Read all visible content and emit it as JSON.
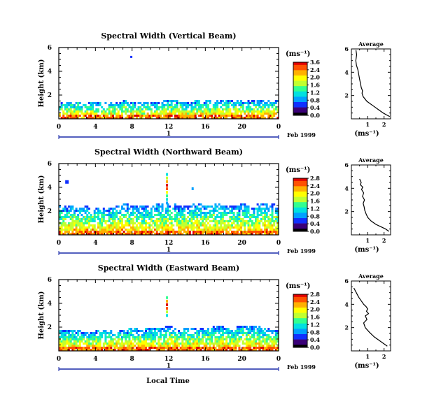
{
  "figure": {
    "date_label": "Feb 1999",
    "day_marker": "1",
    "x_axis_label": "Local Time",
    "colorbar_unit": "(ms⁻¹)",
    "profile_title": "Average",
    "profile_xlabel": "(ms⁻¹)"
  },
  "colors": {
    "colormap": [
      "#000000",
      "#3a0078",
      "#1030ff",
      "#00a0ff",
      "#00e0e0",
      "#30ff90",
      "#c0ff30",
      "#ffff00",
      "#ffb000",
      "#ff5000",
      "#e00000"
    ]
  },
  "chart_data": [
    {
      "type": "heatmap",
      "title": "Spectral Width (Vertical Beam)",
      "xlabel": "",
      "ylabel": "Height (km)",
      "xlim": [
        0,
        24
      ],
      "ylim": [
        0,
        6
      ],
      "x_ticks": [
        "0",
        "4",
        "8",
        "12",
        "16",
        "20",
        "0"
      ],
      "y_ticks": [
        "2",
        "4",
        "6"
      ],
      "colorbar_ticks": [
        "3.6",
        "2.4",
        "2.0",
        "1.6",
        "1.2",
        "0.8",
        "0.4",
        "0.0"
      ],
      "echo_top_km": [
        1.4,
        1.5,
        1.6,
        1.5,
        1.55,
        1.5,
        1.5,
        1.6,
        1.55,
        1.5,
        1.5,
        1.55,
        1.7,
        1.6,
        1.55,
        1.6,
        1.6,
        1.65,
        1.6,
        1.65,
        1.7,
        1.65,
        1.7,
        1.75,
        1.7
      ],
      "profile": {
        "title": "Average",
        "xlabel": "(ms⁻¹)",
        "xlim": [
          0,
          2.4
        ],
        "ylim": [
          0,
          6
        ],
        "x_ticks": [
          "1",
          "2"
        ],
        "y_ticks": [
          "2",
          "4",
          "6"
        ],
        "x": [
          0.28,
          0.32,
          0.27,
          0.31,
          0.4,
          0.45,
          0.5,
          0.56,
          0.6,
          0.68,
          0.65,
          0.72,
          0.95,
          1.35,
          1.65,
          1.95,
          2.2,
          2.35
        ],
        "y": [
          5.9,
          5.5,
          5.0,
          4.6,
          4.2,
          3.8,
          3.4,
          3.0,
          2.7,
          2.4,
          2.2,
          1.9,
          1.5,
          1.1,
          0.8,
          0.5,
          0.3,
          0.2
        ]
      }
    },
    {
      "type": "heatmap",
      "title": "Spectral Width (Northward Beam)",
      "xlabel": "",
      "ylabel": "Height (km)",
      "xlim": [
        0,
        24
      ],
      "ylim": [
        0,
        6
      ],
      "x_ticks": [
        "0",
        "4",
        "8",
        "12",
        "16",
        "20",
        "0"
      ],
      "y_ticks": [
        "2",
        "4",
        "6"
      ],
      "colorbar_ticks": [
        "2.8",
        "2.4",
        "2.0",
        "1.6",
        "1.2",
        "0.8",
        "0.4",
        "0.0"
      ],
      "echo_top_km": [
        2.5,
        2.6,
        2.4,
        2.5,
        2.3,
        2.4,
        2.5,
        2.7,
        2.6,
        2.5,
        2.6,
        2.7,
        2.9,
        2.5,
        2.6,
        2.7,
        2.6,
        2.8,
        2.6,
        2.5,
        2.7,
        2.6,
        2.8,
        2.7,
        2.6
      ],
      "profile": {
        "title": "Average",
        "xlabel": "(ms⁻¹)",
        "xlim": [
          0,
          2.4
        ],
        "ylim": [
          0,
          6
        ],
        "x_ticks": [
          "1",
          "2"
        ],
        "y_ticks": [
          "2",
          "4",
          "6"
        ],
        "x": [
          0.5,
          0.6,
          0.55,
          0.7,
          0.62,
          0.75,
          0.68,
          0.8,
          0.72,
          0.78,
          0.82,
          0.9,
          1.0,
          1.2,
          1.5,
          1.8,
          2.1,
          2.3
        ],
        "y": [
          4.8,
          4.5,
          4.3,
          4.1,
          3.9,
          3.6,
          3.3,
          3.0,
          2.7,
          2.4,
          2.1,
          1.8,
          1.5,
          1.2,
          0.9,
          0.7,
          0.5,
          0.3
        ]
      }
    },
    {
      "type": "heatmap",
      "title": "Spectral Width (Eastward Beam)",
      "xlabel": "Local Time",
      "ylabel": "Height (km)",
      "xlim": [
        0,
        24
      ],
      "ylim": [
        0,
        6
      ],
      "x_ticks": [
        "0",
        "4",
        "8",
        "12",
        "16",
        "20",
        "0"
      ],
      "y_ticks": [
        "2",
        "4",
        "6"
      ],
      "colorbar_ticks": [
        "2.8",
        "2.4",
        "2.0",
        "1.6",
        "1.2",
        "0.8",
        "0.4",
        "0.0"
      ],
      "echo_top_km": [
        1.8,
        1.9,
        1.8,
        1.7,
        1.8,
        1.9,
        1.8,
        1.9,
        2.0,
        1.9,
        2.1,
        2.0,
        2.2,
        1.9,
        2.0,
        2.1,
        2.0,
        2.2,
        2.1,
        2.0,
        2.3,
        2.2,
        2.1,
        2.0,
        1.9
      ],
      "profile": {
        "title": "Average",
        "xlabel": "(ms⁻¹)",
        "xlim": [
          0,
          2.4
        ],
        "ylim": [
          0,
          6
        ],
        "x_ticks": [
          "1",
          "2"
        ],
        "y_ticks": [
          "2",
          "4",
          "6"
        ],
        "x": [
          0.15,
          0.3,
          0.45,
          0.6,
          0.75,
          0.9,
          1.0,
          0.92,
          1.05,
          0.85,
          0.95,
          0.75,
          0.85,
          1.1,
          1.4,
          1.7,
          2.0,
          2.2
        ],
        "y": [
          5.4,
          5.0,
          4.6,
          4.3,
          4.0,
          3.8,
          3.6,
          3.4,
          3.2,
          3.0,
          2.7,
          2.4,
          2.0,
          1.6,
          1.2,
          0.9,
          0.6,
          0.4
        ]
      }
    }
  ]
}
